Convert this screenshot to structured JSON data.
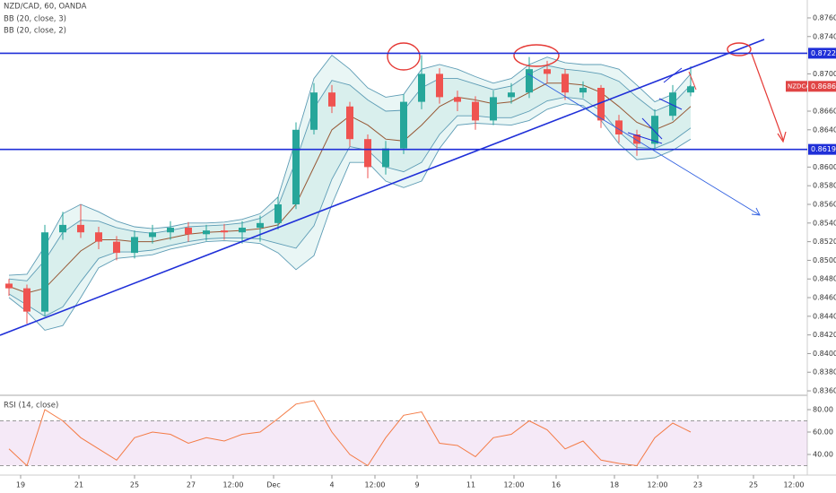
{
  "chart_data": [
    {
      "type": "candlestick",
      "title": "NZD/CAD, 60, OANDA",
      "x": [
        1,
        3,
        5,
        7,
        9,
        11,
        13,
        15,
        17,
        19,
        21,
        23,
        25,
        27,
        29,
        31,
        33,
        35,
        37,
        39,
        41,
        43,
        45,
        47,
        49,
        51,
        53,
        55,
        57,
        59,
        61,
        63,
        65,
        67,
        69,
        71,
        73,
        75,
        77
      ],
      "open": [
        0.8475,
        0.847,
        0.8445,
        0.853,
        0.8538,
        0.853,
        0.852,
        0.8508,
        0.8525,
        0.853,
        0.8535,
        0.8528,
        0.8532,
        0.853,
        0.8535,
        0.854,
        0.856,
        0.864,
        0.868,
        0.8665,
        0.863,
        0.86,
        0.862,
        0.867,
        0.87,
        0.8675,
        0.867,
        0.865,
        0.8675,
        0.868,
        0.8705,
        0.87,
        0.868,
        0.8685,
        0.865,
        0.8635,
        0.8625,
        0.8655,
        0.868
      ],
      "high": [
        0.848,
        0.8474,
        0.8538,
        0.8552,
        0.856,
        0.8536,
        0.8526,
        0.8532,
        0.8538,
        0.8542,
        0.8541,
        0.8538,
        0.8539,
        0.8542,
        0.8548,
        0.8568,
        0.8648,
        0.869,
        0.8688,
        0.867,
        0.8635,
        0.8628,
        0.8678,
        0.872,
        0.8706,
        0.8682,
        0.8676,
        0.8682,
        0.869,
        0.8718,
        0.8714,
        0.8705,
        0.8692,
        0.8688,
        0.8656,
        0.864,
        0.8662,
        0.8688,
        0.8708
      ],
      "low": [
        0.8462,
        0.8432,
        0.844,
        0.8522,
        0.8524,
        0.8512,
        0.85,
        0.8502,
        0.8518,
        0.8522,
        0.852,
        0.8521,
        0.8522,
        0.8518,
        0.852,
        0.8533,
        0.8555,
        0.8635,
        0.8658,
        0.8622,
        0.8588,
        0.8592,
        0.8614,
        0.8662,
        0.8668,
        0.866,
        0.864,
        0.8645,
        0.8668,
        0.8674,
        0.869,
        0.8672,
        0.8674,
        0.8642,
        0.8626,
        0.8612,
        0.862,
        0.865,
        0.8676
      ],
      "close": [
        0.847,
        0.8445,
        0.853,
        0.8538,
        0.853,
        0.852,
        0.8508,
        0.8525,
        0.853,
        0.8535,
        0.8528,
        0.8532,
        0.853,
        0.8535,
        0.854,
        0.856,
        0.864,
        0.868,
        0.8665,
        0.863,
        0.86,
        0.862,
        0.867,
        0.87,
        0.8675,
        0.867,
        0.865,
        0.8675,
        0.868,
        0.8705,
        0.87,
        0.868,
        0.8685,
        0.865,
        0.8635,
        0.8625,
        0.8655,
        0.868,
        0.86866
      ],
      "up_color": "#26a69a",
      "down_color": "#ef5350",
      "bands": [
        {
          "name": "BB (20, close, 3)",
          "color": "#5d9cb5",
          "fill": "rgba(38,166,154,0.10)",
          "basis_color": "#a0522d",
          "upper": [
            0.8484,
            0.8485,
            0.8515,
            0.855,
            0.856,
            0.8552,
            0.8542,
            0.8536,
            0.8534,
            0.8536,
            0.854,
            0.854,
            0.8541,
            0.8544,
            0.855,
            0.8568,
            0.863,
            0.8695,
            0.872,
            0.8705,
            0.8685,
            0.8675,
            0.8678,
            0.8705,
            0.871,
            0.8705,
            0.8697,
            0.869,
            0.8695,
            0.871,
            0.8718,
            0.8712,
            0.871,
            0.871,
            0.8705,
            0.8688,
            0.867,
            0.8678,
            0.87
          ],
          "basis": [
            0.8472,
            0.8465,
            0.847,
            0.849,
            0.851,
            0.8522,
            0.8522,
            0.852,
            0.852,
            0.8524,
            0.8528,
            0.853,
            0.8531,
            0.8532,
            0.8534,
            0.8538,
            0.856,
            0.86,
            0.864,
            0.8655,
            0.8645,
            0.863,
            0.8628,
            0.8645,
            0.8665,
            0.8675,
            0.8672,
            0.8668,
            0.867,
            0.868,
            0.869,
            0.869,
            0.8688,
            0.868,
            0.8665,
            0.8648,
            0.864,
            0.8648,
            0.8665
          ],
          "lower": [
            0.846,
            0.8445,
            0.8425,
            0.843,
            0.846,
            0.8492,
            0.8502,
            0.8504,
            0.8506,
            0.8512,
            0.8516,
            0.852,
            0.8521,
            0.852,
            0.8518,
            0.8508,
            0.849,
            0.8505,
            0.856,
            0.8605,
            0.8605,
            0.8585,
            0.8578,
            0.8585,
            0.862,
            0.8645,
            0.8647,
            0.8646,
            0.8645,
            0.865,
            0.8662,
            0.8668,
            0.8666,
            0.865,
            0.8625,
            0.8608,
            0.861,
            0.8618,
            0.863
          ]
        },
        {
          "name": "BB (20, close, 2)",
          "color": "#5d9cb5",
          "fill": "rgba(38,166,154,0.08)",
          "upper": [
            0.848,
            0.8478,
            0.85,
            0.853,
            0.8543,
            0.8542,
            0.8535,
            0.8531,
            0.8529,
            0.8532,
            0.8536,
            0.8537,
            0.8538,
            0.854,
            0.8545,
            0.8558,
            0.8607,
            0.8663,
            0.8693,
            0.8688,
            0.8672,
            0.866,
            0.8661,
            0.8685,
            0.8695,
            0.8695,
            0.8689,
            0.8683,
            0.8687,
            0.87,
            0.8709,
            0.8705,
            0.8703,
            0.87,
            0.8692,
            0.8675,
            0.866,
            0.8668,
            0.8688
          ],
          "lower": [
            0.8464,
            0.8452,
            0.844,
            0.845,
            0.8477,
            0.8502,
            0.8509,
            0.8509,
            0.8511,
            0.8516,
            0.852,
            0.8523,
            0.8524,
            0.8524,
            0.8523,
            0.8518,
            0.8513,
            0.8537,
            0.8587,
            0.8622,
            0.8618,
            0.86,
            0.8595,
            0.8605,
            0.8635,
            0.8655,
            0.8655,
            0.8653,
            0.8653,
            0.866,
            0.8671,
            0.8675,
            0.8673,
            0.866,
            0.8638,
            0.8621,
            0.862,
            0.8628,
            0.8642
          ]
        }
      ],
      "xlim": [
        0,
        90
      ],
      "ylim": [
        0.83562,
        0.87792
      ],
      "yticks": [
        {
          "value": 0.876,
          "label": "0.87600"
        },
        {
          "value": 0.874,
          "label": "0.87400"
        },
        {
          "value": 0.87,
          "label": "0.87000"
        },
        {
          "value": 0.866,
          "label": "0.86600"
        },
        {
          "value": 0.864,
          "label": "0.86400"
        },
        {
          "value": 0.86,
          "label": "0.86000"
        },
        {
          "value": 0.858,
          "label": "0.85800"
        },
        {
          "value": 0.856,
          "label": "0.85600"
        },
        {
          "value": 0.854,
          "label": "0.85400"
        },
        {
          "value": 0.852,
          "label": "0.85200"
        },
        {
          "value": 0.85,
          "label": "0.85000"
        },
        {
          "value": 0.848,
          "label": "0.84800"
        },
        {
          "value": 0.846,
          "label": "0.84600"
        },
        {
          "value": 0.844,
          "label": "0.84400"
        },
        {
          "value": 0.842,
          "label": "0.84200"
        },
        {
          "value": 0.84,
          "label": "0.84000"
        },
        {
          "value": 0.838,
          "label": "0.83800"
        },
        {
          "value": 0.836,
          "label": "0.83600"
        }
      ],
      "xticks": [
        {
          "value": 2.3,
          "label": "19"
        },
        {
          "value": 8.8,
          "label": "21"
        },
        {
          "value": 15,
          "label": "25"
        },
        {
          "value": 21.3,
          "label": "27"
        },
        {
          "value": 26,
          "label": "12:00"
        },
        {
          "value": 30.5,
          "label": "Dec"
        },
        {
          "value": 37,
          "label": "4"
        },
        {
          "value": 41.8,
          "label": "12:00"
        },
        {
          "value": 46.5,
          "label": "9"
        },
        {
          "value": 52.5,
          "label": "11"
        },
        {
          "value": 57.3,
          "label": "12:00"
        },
        {
          "value": 62,
          "label": "16"
        },
        {
          "value": 68.5,
          "label": "18"
        },
        {
          "value": 73.3,
          "label": "12:00"
        },
        {
          "value": 77.8,
          "label": "23"
        },
        {
          "value": 84,
          "label": "25"
        },
        {
          "value": 88.5,
          "label": "12:00"
        }
      ],
      "levels": [
        0.87221,
        {
          "value": 0.8619,
          "label": "0.86190"
        }
      ],
      "level_color": "#1f2fd8",
      "last_price": {
        "label": "NZDCAD",
        "value": 0.86866
      },
      "last_color": "#e04545"
    },
    {
      "type": "line",
      "title": "RSI (14, close)",
      "x": [
        1,
        3,
        5,
        7,
        9,
        11,
        13,
        15,
        17,
        19,
        21,
        23,
        25,
        27,
        29,
        31,
        33,
        35,
        37,
        39,
        41,
        43,
        45,
        47,
        49,
        51,
        53,
        55,
        57,
        59,
        61,
        63,
        65,
        67,
        69,
        71,
        73,
        75,
        77
      ],
      "values": [
        45,
        30,
        80,
        70,
        55,
        45,
        35,
        55,
        60,
        58,
        50,
        55,
        52,
        58,
        60,
        72,
        85,
        88,
        60,
        40,
        30,
        55,
        75,
        78,
        50,
        48,
        38,
        55,
        58,
        70,
        62,
        45,
        52,
        35,
        32,
        30,
        55,
        68,
        60
      ],
      "color": "#f47b45",
      "ylim": [
        21.6,
        91.2
      ],
      "yticks": [
        {
          "value": 40,
          "label": "40.00"
        },
        {
          "value": 60,
          "label": "60.00"
        },
        {
          "value": 80,
          "label": "80.00"
        }
      ],
      "bands": [
        30,
        70
      ],
      "band_fill": "rgba(156,39,176,0.10)"
    }
  ]
}
